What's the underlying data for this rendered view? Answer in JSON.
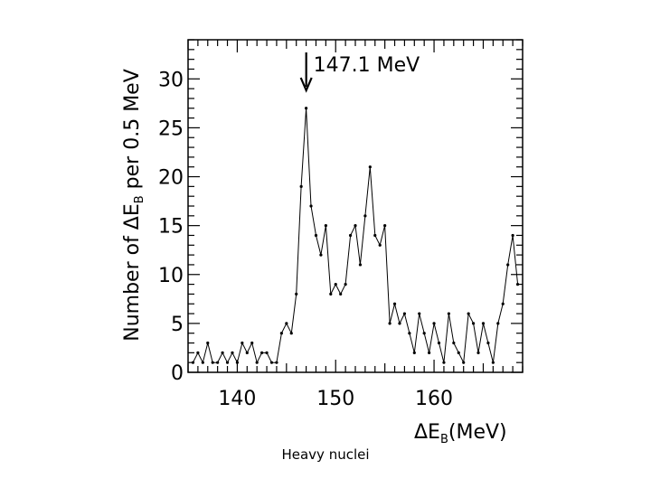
{
  "caption": "Heavy nuclei",
  "chart_data": {
    "type": "line",
    "ylabel": "Number of ΔE_B per 0.5 MeV",
    "xlabel": "ΔE_B(MeV)",
    "xlim": [
      135,
      169
    ],
    "ylim": [
      0,
      34
    ],
    "xticks": [
      140,
      150,
      160
    ],
    "yticks": [
      0,
      5,
      10,
      15,
      20,
      25,
      30
    ],
    "grid": false,
    "annotation": {
      "text": "147.1 MeV",
      "x": 147.1
    },
    "series": [
      {
        "x": [
          135.5,
          136,
          136.5,
          137,
          137.5,
          138,
          138.5,
          139,
          139.5,
          140,
          140.5,
          141,
          141.5,
          142,
          142.5,
          143,
          143.5,
          144,
          144.5,
          145,
          145.5,
          146,
          146.5,
          147,
          147.5,
          148,
          148.5,
          149,
          149.5,
          150,
          150.5,
          151,
          151.5,
          152,
          152.5,
          153,
          153.5,
          154,
          154.5,
          155,
          155.5,
          156,
          156.5,
          157,
          157.5,
          158,
          158.5,
          159,
          159.5,
          160,
          160.5,
          161,
          161.5,
          162,
          162.5,
          163,
          163.5,
          164,
          164.5,
          165,
          165.5,
          166,
          166.5,
          167,
          167.5,
          168,
          168.5
        ],
        "y": [
          1,
          2,
          1,
          3,
          1,
          1,
          2,
          1,
          2,
          1,
          3,
          2,
          3,
          1,
          2,
          2,
          1,
          1,
          4,
          5,
          4,
          8,
          19,
          27,
          17,
          14,
          12,
          15,
          8,
          9,
          8,
          9,
          14,
          15,
          11,
          16,
          21,
          14,
          13,
          15,
          5,
          7,
          5,
          6,
          4,
          2,
          6,
          4,
          2,
          5,
          3,
          1,
          6,
          3,
          2,
          1,
          6,
          5,
          2,
          5,
          3,
          1,
          5,
          7,
          11,
          14,
          9
        ],
        "markers": true
      }
    ]
  }
}
